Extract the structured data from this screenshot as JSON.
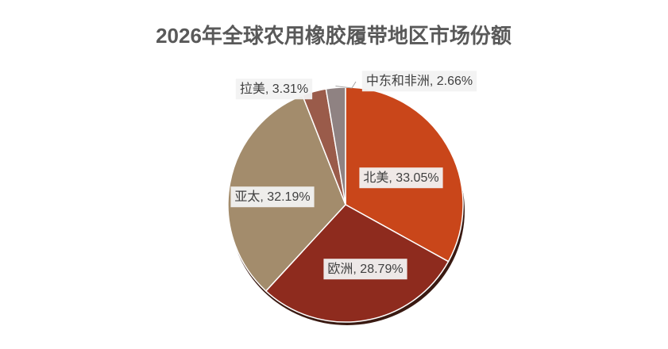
{
  "chart_data": {
    "type": "pie",
    "title": "2026年全球农用橡胶履带地区市场份额",
    "values": [
      33.05,
      28.79,
      32.19,
      3.31,
      2.66
    ],
    "value_labels": [
      "北美, 33.05%",
      "欧洲, 28.79%",
      "亚太, 32.19%",
      "拉美, 3.31%",
      "中东和非洲, 2.66%"
    ],
    "colors": [
      "#c9461a",
      "#8e2b1e",
      "#a38c6c",
      "#9a5b4a",
      "#8f8282"
    ]
  }
}
